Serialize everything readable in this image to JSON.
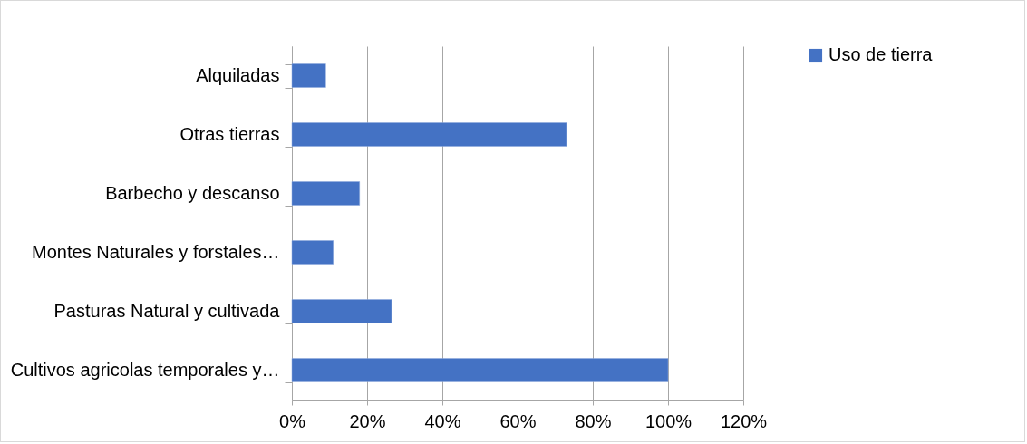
{
  "chart_data": {
    "type": "bar",
    "orientation": "horizontal",
    "categories": [
      "Alquiladas",
      "Otras tierras",
      "Barbecho y descanso",
      "Montes Naturales y forstales…",
      "Pasturas Natural y cultivada",
      "Cultivos agricolas temporales y…"
    ],
    "series": [
      {
        "name": "Uso de tierra",
        "color": "#4472c4",
        "values": [
          9,
          73,
          18,
          11,
          26.5,
          100
        ]
      }
    ],
    "xlim": [
      0,
      120
    ],
    "xticks": [
      {
        "value": 0,
        "label": "0%"
      },
      {
        "value": 20,
        "label": "20%"
      },
      {
        "value": 40,
        "label": "40%"
      },
      {
        "value": 60,
        "label": "60%"
      },
      {
        "value": 80,
        "label": "80%"
      },
      {
        "value": 100,
        "label": "100%"
      },
      {
        "value": 120,
        "label": "120%"
      }
    ],
    "grid": "x",
    "legend": "right"
  }
}
